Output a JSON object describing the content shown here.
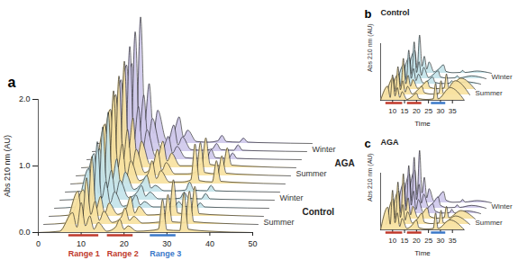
{
  "chart_data": [
    {
      "type": "area",
      "title": "a",
      "y_label": "Abs 210 nm (AU)",
      "x": [
        0,
        5,
        8,
        9,
        10,
        11,
        12,
        13,
        14,
        16,
        18,
        19,
        20,
        21,
        23,
        26,
        28,
        29,
        30,
        33,
        34,
        35,
        40,
        50
      ],
      "xlim": [
        0,
        50
      ],
      "xticks": [
        0,
        10,
        20,
        30,
        40,
        50
      ],
      "ylim": [
        0,
        2
      ],
      "yticks": [
        {
          "value": 0,
          "label": "0.0"
        },
        {
          "value": 1,
          "label": "1.0"
        },
        {
          "value": 2,
          "label": "2.0"
        }
      ],
      "ranges": [
        {
          "label": "Range 1",
          "from": 7,
          "to": 14,
          "color": "#c0392b"
        },
        {
          "label": "Range 2",
          "from": 16,
          "to": 22,
          "color": "#c0392b"
        },
        {
          "label": "Range 3",
          "from": 26,
          "to": 32,
          "color": "#3a78c9"
        }
      ],
      "groups": [
        {
          "name": "Control",
          "seasons": [
            {
              "name": "Summer",
              "color": "#f7e2a1",
              "traces": [
                [
                  0,
                  0.02,
                  0.3,
                  0.08,
                  0.45,
                  0.1,
                  0.25,
                  0.05,
                  0.15,
                  0.02,
                  0.08,
                  0.2,
                  0.05,
                  0.1,
                  0.02,
                  0.03,
                  0.05,
                  0.5,
                  0.04,
                  0.03,
                  0.6,
                  0.05,
                  0.02,
                  0
                ],
                [
                  0,
                  0.02,
                  0.5,
                  0.1,
                  0.7,
                  0.15,
                  0.35,
                  0.06,
                  0.2,
                  0.03,
                  0.1,
                  0.25,
                  0.06,
                  0.12,
                  0.02,
                  0.03,
                  0.05,
                  0.45,
                  0.04,
                  0.03,
                  0.5,
                  0.04,
                  0.02,
                  0
                ],
                [
                  0,
                  0.02,
                  0.4,
                  0.1,
                  0.9,
                  0.12,
                  0.3,
                  0.05,
                  0.2,
                  0.03,
                  0.12,
                  0.3,
                  0.05,
                  0.15,
                  0.02,
                  0.03,
                  0.06,
                  0.55,
                  0.05,
                  0.03,
                  0.45,
                  0.04,
                  0.02,
                  0
                ]
              ]
            },
            {
              "name": "Winter",
              "color": "#c4e4ea",
              "traces": [
                [
                  0,
                  0.02,
                  0.6,
                  0.12,
                  1.0,
                  0.15,
                  0.4,
                  0.08,
                  0.25,
                  0.03,
                  0.1,
                  0.2,
                  0.05,
                  0.1,
                  0.02,
                  0.02,
                  0.03,
                  0.1,
                  0.03,
                  0.02,
                  0.08,
                  0.02,
                  0.01,
                  0
                ],
                [
                  0,
                  0.02,
                  0.7,
                  0.1,
                  1.1,
                  0.18,
                  0.45,
                  0.08,
                  0.3,
                  0.04,
                  0.12,
                  0.22,
                  0.06,
                  0.12,
                  0.02,
                  0.02,
                  0.03,
                  0.12,
                  0.03,
                  0.02,
                  0.1,
                  0.02,
                  0.01,
                  0
                ],
                [
                  0,
                  0.02,
                  0.65,
                  0.14,
                  1.2,
                  0.2,
                  0.5,
                  0.1,
                  0.3,
                  0.04,
                  0.15,
                  0.25,
                  0.06,
                  0.1,
                  0.02,
                  0.02,
                  0.03,
                  0.15,
                  0.03,
                  0.02,
                  0.1,
                  0.02,
                  0.01,
                  0
                ]
              ]
            }
          ]
        },
        {
          "name": "AGA",
          "seasons": [
            {
              "name": "Summer",
              "color": "#f7e2a1",
              "traces": [
                [
                  0,
                  0.03,
                  0.9,
                  0.2,
                  1.4,
                  0.25,
                  0.6,
                  0.1,
                  0.35,
                  0.05,
                  0.15,
                  0.35,
                  0.08,
                  0.2,
                  0.03,
                  0.03,
                  0.06,
                  0.6,
                  0.05,
                  0.03,
                  0.35,
                  0.04,
                  0.02,
                  0
                ],
                [
                  0,
                  0.03,
                  1.0,
                  0.2,
                  1.5,
                  0.25,
                  0.7,
                  0.12,
                  0.4,
                  0.05,
                  0.18,
                  0.4,
                  0.08,
                  0.2,
                  0.03,
                  0.03,
                  0.06,
                  0.5,
                  0.05,
                  0.03,
                  0.3,
                  0.04,
                  0.02,
                  0
                ],
                [
                  0,
                  0.03,
                  1.1,
                  0.22,
                  1.6,
                  0.3,
                  0.75,
                  0.12,
                  0.4,
                  0.05,
                  0.2,
                  0.4,
                  0.1,
                  0.22,
                  0.03,
                  0.03,
                  0.06,
                  0.45,
                  0.05,
                  0.03,
                  0.3,
                  0.04,
                  0.02,
                  0
                ]
              ]
            },
            {
              "name": "Winter",
              "color": "#cfc9ec",
              "traces": [
                [
                  0,
                  0.03,
                  1.2,
                  0.25,
                  1.7,
                  0.3,
                  0.8,
                  0.15,
                  0.45,
                  0.05,
                  0.2,
                  0.35,
                  0.1,
                  0.2,
                  0.03,
                  0.02,
                  0.04,
                  0.15,
                  0.03,
                  0.02,
                  0.1,
                  0.02,
                  0.01,
                  0
                ],
                [
                  0,
                  0.03,
                  1.3,
                  0.25,
                  1.8,
                  0.3,
                  0.85,
                  0.15,
                  0.5,
                  0.05,
                  0.2,
                  0.4,
                  0.1,
                  0.22,
                  0.03,
                  0.02,
                  0.04,
                  0.12,
                  0.03,
                  0.02,
                  0.1,
                  0.02,
                  0.01,
                  0
                ],
                [
                  0,
                  0.03,
                  1.2,
                  0.28,
                  1.9,
                  0.35,
                  0.9,
                  0.15,
                  0.5,
                  0.06,
                  0.22,
                  0.4,
                  0.1,
                  0.2,
                  0.03,
                  0.02,
                  0.04,
                  0.12,
                  0.03,
                  0.02,
                  0.08,
                  0.02,
                  0.01,
                  0
                ]
              ]
            }
          ]
        }
      ]
    },
    {
      "type": "area",
      "title": "b",
      "y_label": "Abs 210 nm (AU)",
      "x_label": "Time",
      "x": [
        5,
        8,
        9,
        10,
        11,
        12,
        13,
        14,
        16,
        18,
        20,
        21,
        24,
        27,
        28,
        29,
        34,
        40
      ],
      "xlim": [
        5,
        40
      ],
      "xticks": [
        10,
        15,
        20,
        25,
        30,
        35
      ],
      "ylim": [
        0,
        2
      ],
      "tick_labels": "x",
      "ranges": [
        {
          "from": 7,
          "to": 14,
          "color": "#c0392b"
        },
        {
          "from": 16,
          "to": 22,
          "color": "#c0392b"
        },
        {
          "from": 26,
          "to": 32,
          "color": "#3a78c9"
        }
      ],
      "groups": [
        {
          "name": "Control",
          "seasons": [
            {
              "name": "Summer",
              "color": "#f7e2a1",
              "traces": [
                [
                  0,
                  0.5,
                  0.1,
                  0.9,
                  0.15,
                  0.45,
                  0.1,
                  0.3,
                  0.03,
                  0.12,
                  0.25,
                  0.06,
                  0.03,
                  0.05,
                  0.6,
                  0.05,
                  0.45,
                  0
                ],
                [
                  0,
                  0.6,
                  0.12,
                  1.0,
                  0.18,
                  0.5,
                  0.1,
                  0.3,
                  0.03,
                  0.15,
                  0.3,
                  0.08,
                  0.03,
                  0.05,
                  0.5,
                  0.05,
                  0.5,
                  0
                ],
                [
                  0,
                  0.55,
                  0.1,
                  1.1,
                  0.2,
                  0.5,
                  0.12,
                  0.35,
                  0.04,
                  0.15,
                  0.3,
                  0.08,
                  0.03,
                  0.05,
                  0.55,
                  0.05,
                  0.4,
                  0
                ]
              ]
            },
            {
              "name": "Winter",
              "color": "#c4e4ea",
              "traces": [
                [
                  0,
                  0.7,
                  0.15,
                  1.2,
                  0.2,
                  0.55,
                  0.12,
                  0.35,
                  0.04,
                  0.12,
                  0.25,
                  0.06,
                  0.02,
                  0.03,
                  0.12,
                  0.03,
                  0.08,
                  0
                ],
                [
                  0,
                  0.75,
                  0.15,
                  1.3,
                  0.22,
                  0.6,
                  0.12,
                  0.4,
                  0.04,
                  0.15,
                  0.28,
                  0.06,
                  0.02,
                  0.03,
                  0.1,
                  0.03,
                  0.1,
                  0
                ],
                [
                  0,
                  0.8,
                  0.18,
                  1.35,
                  0.25,
                  0.6,
                  0.15,
                  0.4,
                  0.05,
                  0.15,
                  0.3,
                  0.07,
                  0.02,
                  0.03,
                  0.1,
                  0.03,
                  0.08,
                  0
                ]
              ]
            }
          ]
        }
      ]
    },
    {
      "type": "area",
      "title": "c",
      "y_label": "Abs 210 nm (AU)",
      "x_label": "Time",
      "x": [
        5,
        8,
        9,
        10,
        11,
        12,
        13,
        14,
        16,
        18,
        20,
        21,
        24,
        27,
        28,
        29,
        34,
        40
      ],
      "xlim": [
        5,
        40
      ],
      "xticks": [
        10,
        15,
        20,
        25,
        30,
        35
      ],
      "ylim": [
        0,
        2
      ],
      "tick_labels": "x",
      "ranges": [
        {
          "from": 7,
          "to": 14,
          "color": "#c0392b"
        },
        {
          "from": 16,
          "to": 22,
          "color": "#c0392b"
        },
        {
          "from": 26,
          "to": 32,
          "color": "#3a78c9"
        }
      ],
      "groups": [
        {
          "name": "AGA",
          "seasons": [
            {
              "name": "Summer",
              "color": "#f7e2a1",
              "traces": [
                [
                  0,
                  0.8,
                  0.2,
                  1.4,
                  0.25,
                  0.6,
                  0.12,
                  0.4,
                  0.05,
                  0.15,
                  0.35,
                  0.08,
                  0.03,
                  0.05,
                  0.6,
                  0.05,
                  0.35,
                  0
                ],
                [
                  0,
                  0.9,
                  0.2,
                  1.5,
                  0.25,
                  0.7,
                  0.15,
                  0.45,
                  0.05,
                  0.18,
                  0.4,
                  0.08,
                  0.03,
                  0.05,
                  0.5,
                  0.05,
                  0.3,
                  0
                ],
                [
                  0,
                  1.0,
                  0.22,
                  1.6,
                  0.3,
                  0.75,
                  0.15,
                  0.45,
                  0.05,
                  0.2,
                  0.4,
                  0.1,
                  0.03,
                  0.05,
                  0.45,
                  0.05,
                  0.3,
                  0
                ]
              ]
            },
            {
              "name": "Winter",
              "color": "#cfc9ec",
              "traces": [
                [
                  0,
                  1.1,
                  0.25,
                  1.7,
                  0.3,
                  0.8,
                  0.15,
                  0.5,
                  0.05,
                  0.2,
                  0.35,
                  0.1,
                  0.02,
                  0.03,
                  0.15,
                  0.03,
                  0.1,
                  0
                ],
                [
                  0,
                  1.2,
                  0.25,
                  1.8,
                  0.3,
                  0.85,
                  0.18,
                  0.5,
                  0.05,
                  0.2,
                  0.4,
                  0.1,
                  0.02,
                  0.03,
                  0.12,
                  0.03,
                  0.1,
                  0
                ],
                [
                  0,
                  1.15,
                  0.28,
                  1.85,
                  0.35,
                  0.9,
                  0.18,
                  0.5,
                  0.06,
                  0.22,
                  0.4,
                  0.1,
                  0.02,
                  0.03,
                  0.12,
                  0.03,
                  0.08,
                  0
                ]
              ]
            }
          ]
        }
      ]
    }
  ]
}
